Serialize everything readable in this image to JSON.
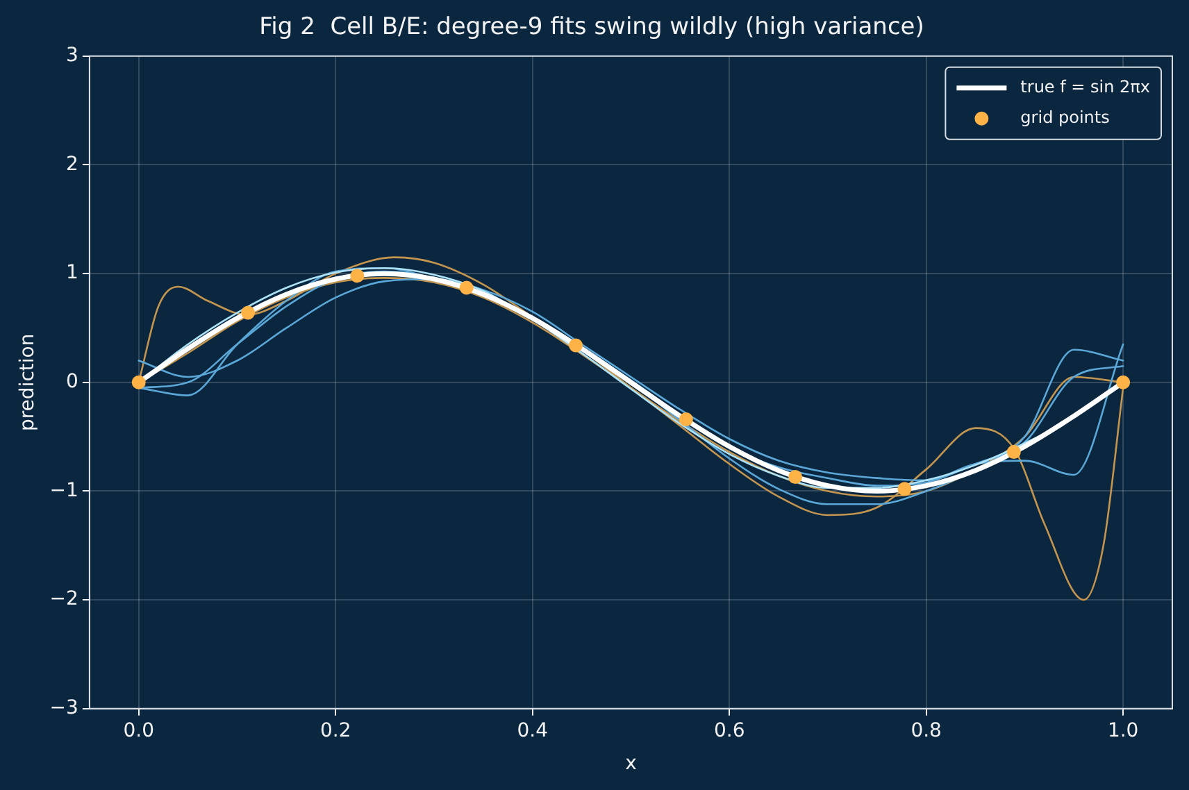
{
  "chart_data": {
    "type": "line",
    "title": "Fig 2  Cell B/E: degree-9 fits swing wildly (high variance)",
    "xlabel": "x",
    "ylabel": "prediction",
    "xlim": [
      -0.05,
      1.05
    ],
    "ylim": [
      -3,
      3
    ],
    "xticks": [
      {
        "value": 0,
        "label": "0.0"
      },
      {
        "value": 0.2,
        "label": "0.2"
      },
      {
        "value": 0.4,
        "label": "0.4"
      },
      {
        "value": 0.6,
        "label": "0.6"
      },
      {
        "value": 0.8,
        "label": "0.8"
      },
      {
        "value": 1,
        "label": "1.0"
      }
    ],
    "yticks": [
      {
        "value": -3,
        "label": "−3"
      },
      {
        "value": -2,
        "label": "−2"
      },
      {
        "value": -1,
        "label": "−1"
      },
      0,
      1,
      2,
      3
    ],
    "grid": true,
    "legend": "top right",
    "x": [
      0,
      0.05,
      0.1,
      0.15,
      0.2,
      0.25,
      0.3,
      0.35,
      0.4,
      0.45,
      0.5,
      0.55,
      0.6,
      0.65,
      0.7,
      0.75,
      0.8,
      0.85,
      0.9,
      0.95,
      1.0
    ],
    "series": [
      {
        "marker": "none",
        "color": "#c4954f",
        "x": [
          0,
          0.02,
          0.04,
          0.07,
          0.11,
          0.15,
          0.2,
          0.26,
          0.3,
          0.35,
          0.4,
          0.45,
          0.5,
          0.55,
          0.6,
          0.65,
          0.7,
          0.75,
          0.8,
          0.85,
          0.89,
          0.92,
          0.96,
          0.98,
          1.0
        ],
        "values": [
          0,
          0.7,
          0.88,
          0.75,
          0.62,
          0.75,
          1.0,
          1.15,
          1.1,
          0.9,
          0.6,
          0.3,
          -0.05,
          -0.4,
          -0.75,
          -1.05,
          -1.22,
          -1.15,
          -0.8,
          -0.42,
          -0.62,
          -1.3,
          -2.0,
          -1.5,
          -0.05
        ]
      },
      {
        "marker": "none",
        "color": "#c4954f",
        "values": [
          0,
          0.27,
          0.56,
          0.78,
          0.92,
          0.96,
          0.92,
          0.78,
          0.55,
          0.26,
          -0.05,
          -0.36,
          -0.64,
          -0.86,
          -1.0,
          -1.05,
          -1.0,
          -0.8,
          -0.5,
          0.05,
          0.0
        ]
      },
      {
        "marker": "none",
        "color": "#5ba8d8",
        "values": [
          0.2,
          0.05,
          0.2,
          0.5,
          0.78,
          0.93,
          0.95,
          0.85,
          0.65,
          0.35,
          0.05,
          -0.25,
          -0.52,
          -0.72,
          -0.83,
          -0.88,
          -0.9,
          -0.75,
          -0.72,
          -0.85,
          0.35
        ]
      },
      {
        "marker": "none",
        "color": "#5ba8d8",
        "values": [
          -0.05,
          -0.12,
          0.35,
          0.75,
          1.02,
          1.05,
          0.95,
          0.8,
          0.6,
          0.3,
          0,
          -0.35,
          -0.7,
          -0.98,
          -1.12,
          -1.12,
          -1.0,
          -0.8,
          -0.5,
          0.3,
          0.2
        ]
      },
      {
        "marker": "none",
        "color": "#5ba8d8",
        "values": [
          -0.05,
          0.0,
          0.35,
          0.7,
          0.95,
          1.02,
          0.96,
          0.82,
          0.6,
          0.32,
          0.02,
          -0.3,
          -0.6,
          -0.78,
          -0.88,
          -0.95,
          -0.92,
          -0.75,
          -0.55,
          0.05,
          0.15
        ]
      },
      {
        "marker": "none",
        "color": "#aee3f7",
        "values": [
          0,
          0.35,
          0.64,
          0.87,
          1.01,
          1.05,
          0.99,
          0.84,
          0.58,
          0.27,
          -0.06,
          -0.38,
          -0.66,
          -0.86,
          -0.97,
          -0.97,
          -0.9,
          -0.76,
          -0.56,
          -0.32,
          0
        ]
      },
      {
        "marker": "none",
        "name": "true f = sin 2πx",
        "color": "#ffffff",
        "values": [
          0,
          0.31,
          0.59,
          0.81,
          0.95,
          1.0,
          0.95,
          0.81,
          0.59,
          0.31,
          0,
          -0.31,
          -0.59,
          -0.81,
          -0.95,
          -1.0,
          -0.95,
          -0.81,
          -0.59,
          -0.31,
          0
        ]
      },
      {
        "type": "scatter",
        "marker": "circle",
        "name": "grid points",
        "color": "#ffb347",
        "x": [
          0,
          0.111,
          0.222,
          0.333,
          0.444,
          0.556,
          0.667,
          0.778,
          0.889,
          1.0
        ],
        "values": [
          0,
          0.64,
          0.98,
          0.87,
          0.34,
          -0.34,
          -0.87,
          -0.98,
          -0.64,
          0
        ]
      }
    ]
  }
}
